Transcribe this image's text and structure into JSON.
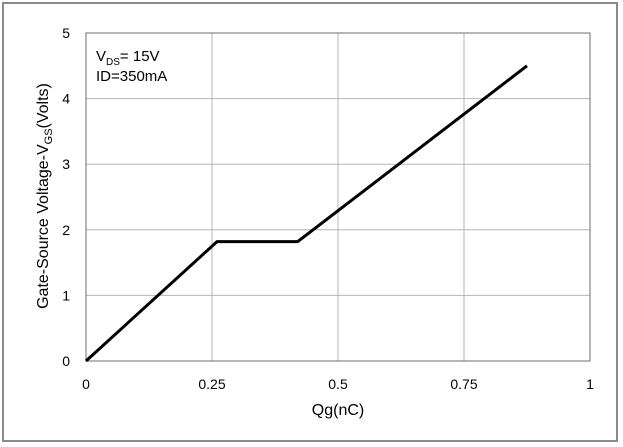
{
  "chart_data": {
    "type": "line",
    "xlabel": "Qg(nC)",
    "ylabel": {
      "main": "Gate-Source Voltage-V",
      "sub": "GS",
      "tail": "(Volts)"
    },
    "xlim": [
      0,
      1
    ],
    "ylim": [
      0,
      5
    ],
    "xticks": [
      "0",
      "0.25",
      "0.5",
      "0.75",
      "1"
    ],
    "yticks": [
      "0",
      "1",
      "2",
      "3",
      "4",
      "5"
    ],
    "xtick_values": [
      0,
      0.25,
      0.5,
      0.75,
      1
    ],
    "ytick_values": [
      0,
      1,
      2,
      3,
      4,
      5
    ],
    "grid": true,
    "series": [
      {
        "x": [
          0,
          0.26,
          0.42,
          0.875
        ],
        "y": [
          0,
          1.82,
          1.82,
          4.5
        ],
        "color": "#000000"
      }
    ],
    "annotations": [
      {
        "main": "V",
        "sub": "DS",
        "tail": "= 15V"
      },
      {
        "text": "ID=350mA"
      }
    ]
  }
}
